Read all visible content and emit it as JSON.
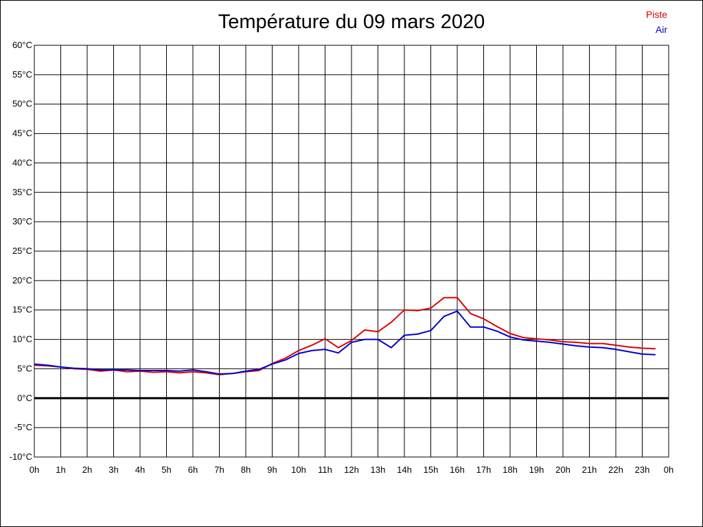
{
  "chart_data": {
    "type": "line",
    "title": "Température du 09 mars 2020",
    "xlabel": "",
    "ylabel": "",
    "ylim": [
      -10,
      60
    ],
    "y_ticks": [
      "60°C",
      "55°C",
      "50°C",
      "45°C",
      "40°C",
      "35°C",
      "30°C",
      "25°C",
      "20°C",
      "15°C",
      "10°C",
      "5°C",
      "0°C",
      "-5°C",
      "-10°C"
    ],
    "x_ticks": [
      "0h",
      "1h",
      "2h",
      "3h",
      "4h",
      "5h",
      "6h",
      "7h",
      "8h",
      "9h",
      "10h",
      "11h",
      "12h",
      "13h",
      "14h",
      "15h",
      "16h",
      "17h",
      "18h",
      "19h",
      "20h",
      "21h",
      "22h",
      "23h",
      "0h"
    ],
    "grid": true,
    "legend_position": "top-right",
    "series": [
      {
        "name": "Piste",
        "color": "#dd0000",
        "x": [
          0,
          0.5,
          1,
          1.5,
          2,
          2.5,
          3,
          3.5,
          4,
          4.5,
          5,
          5.5,
          6,
          6.5,
          7,
          7.5,
          8,
          8.5,
          9,
          9.5,
          10,
          10.5,
          11,
          11.5,
          12,
          12.5,
          13,
          13.5,
          14,
          14.5,
          15,
          15.5,
          16,
          16.5,
          17,
          17.5,
          18,
          18.5,
          19,
          19.5,
          20,
          20.5,
          21,
          21.5,
          22,
          22.5,
          23,
          23.5
        ],
        "values": [
          5.6,
          5.5,
          5.3,
          5.0,
          4.9,
          4.6,
          4.8,
          4.5,
          4.6,
          4.4,
          4.5,
          4.3,
          4.5,
          4.3,
          4.0,
          4.2,
          4.5,
          4.7,
          5.9,
          6.8,
          8.1,
          9.0,
          10.1,
          8.6,
          9.8,
          11.6,
          11.3,
          12.9,
          15.0,
          14.9,
          15.3,
          17.1,
          17.1,
          14.4,
          13.5,
          12.2,
          11.0,
          10.3,
          10.1,
          9.9,
          9.6,
          9.5,
          9.3,
          9.3,
          9.0,
          8.7,
          8.5,
          8.4
        ]
      },
      {
        "name": "Air",
        "color": "#0000cc",
        "x": [
          0,
          0.5,
          1,
          1.5,
          2,
          2.5,
          3,
          3.5,
          4,
          4.5,
          5,
          5.5,
          6,
          6.5,
          7,
          7.5,
          8,
          8.5,
          9,
          9.5,
          10,
          10.5,
          11,
          11.5,
          12,
          12.5,
          13,
          13.5,
          14,
          14.5,
          15,
          15.5,
          16,
          16.5,
          17,
          17.5,
          18,
          18.5,
          19,
          19.5,
          20,
          20.5,
          21,
          21.5,
          22,
          22.5,
          23,
          23.5
        ],
        "values": [
          5.8,
          5.6,
          5.3,
          5.1,
          5.0,
          4.8,
          4.8,
          4.8,
          4.7,
          4.7,
          4.7,
          4.6,
          4.8,
          4.5,
          4.1,
          4.2,
          4.6,
          4.9,
          5.8,
          6.5,
          7.6,
          8.1,
          8.3,
          7.7,
          9.5,
          10.0,
          10.0,
          8.6,
          10.7,
          10.9,
          11.5,
          13.9,
          14.8,
          12.1,
          12.1,
          11.4,
          10.4,
          9.9,
          9.7,
          9.5,
          9.2,
          8.9,
          8.7,
          8.6,
          8.3,
          7.9,
          7.5,
          7.4
        ]
      }
    ]
  }
}
